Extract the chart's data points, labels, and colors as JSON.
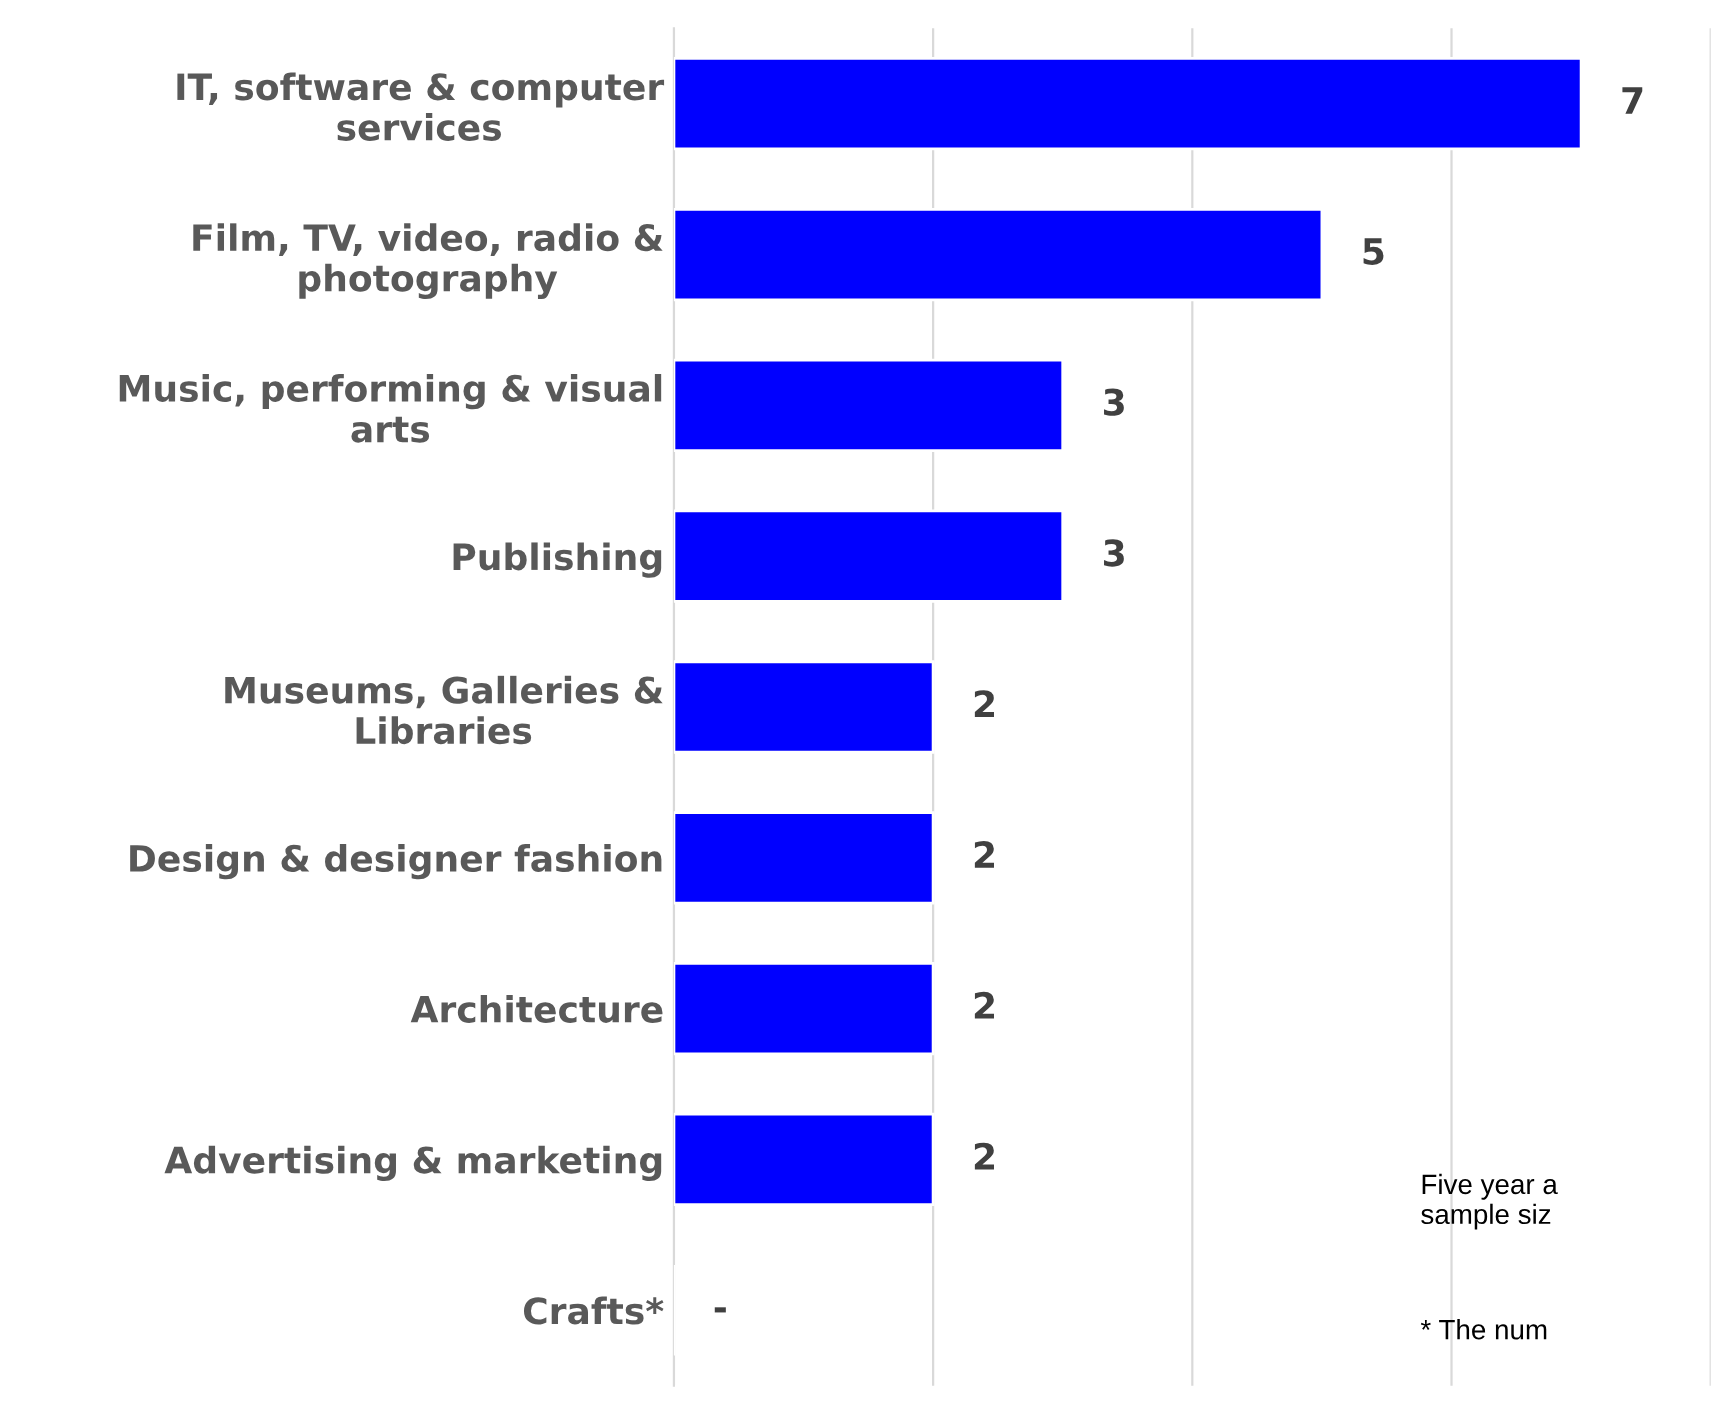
{
  "chart_data": {
    "type": "bar",
    "orientation": "horizontal",
    "categories": [
      "IT, software & computer\nservices",
      "Film, TV, video, radio &\nphotography",
      "Music, performing & visual\narts",
      "Publishing",
      "Museums, Galleries &\nLibraries",
      "Design & designer fashion",
      "Architecture",
      "Advertising & marketing",
      "Crafts*"
    ],
    "values": [
      7,
      5,
      3,
      3,
      2,
      2,
      2,
      2,
      null
    ],
    "value_labels": [
      "7",
      "5",
      "3",
      "3",
      "2",
      "2",
      "2",
      "2",
      "-"
    ],
    "color": "#0000ff",
    "xlim": [
      0,
      8
    ],
    "xticks": [
      {
        "value": 0,
        "label": null
      },
      {
        "value": 2,
        "label": null
      },
      {
        "value": 4,
        "label": null
      },
      {
        "value": 6,
        "label": null
      },
      {
        "value": 8,
        "label": null
      }
    ],
    "grid": "x",
    "annotations": [
      "Five year a\nsample siz",
      "* The num"
    ]
  }
}
